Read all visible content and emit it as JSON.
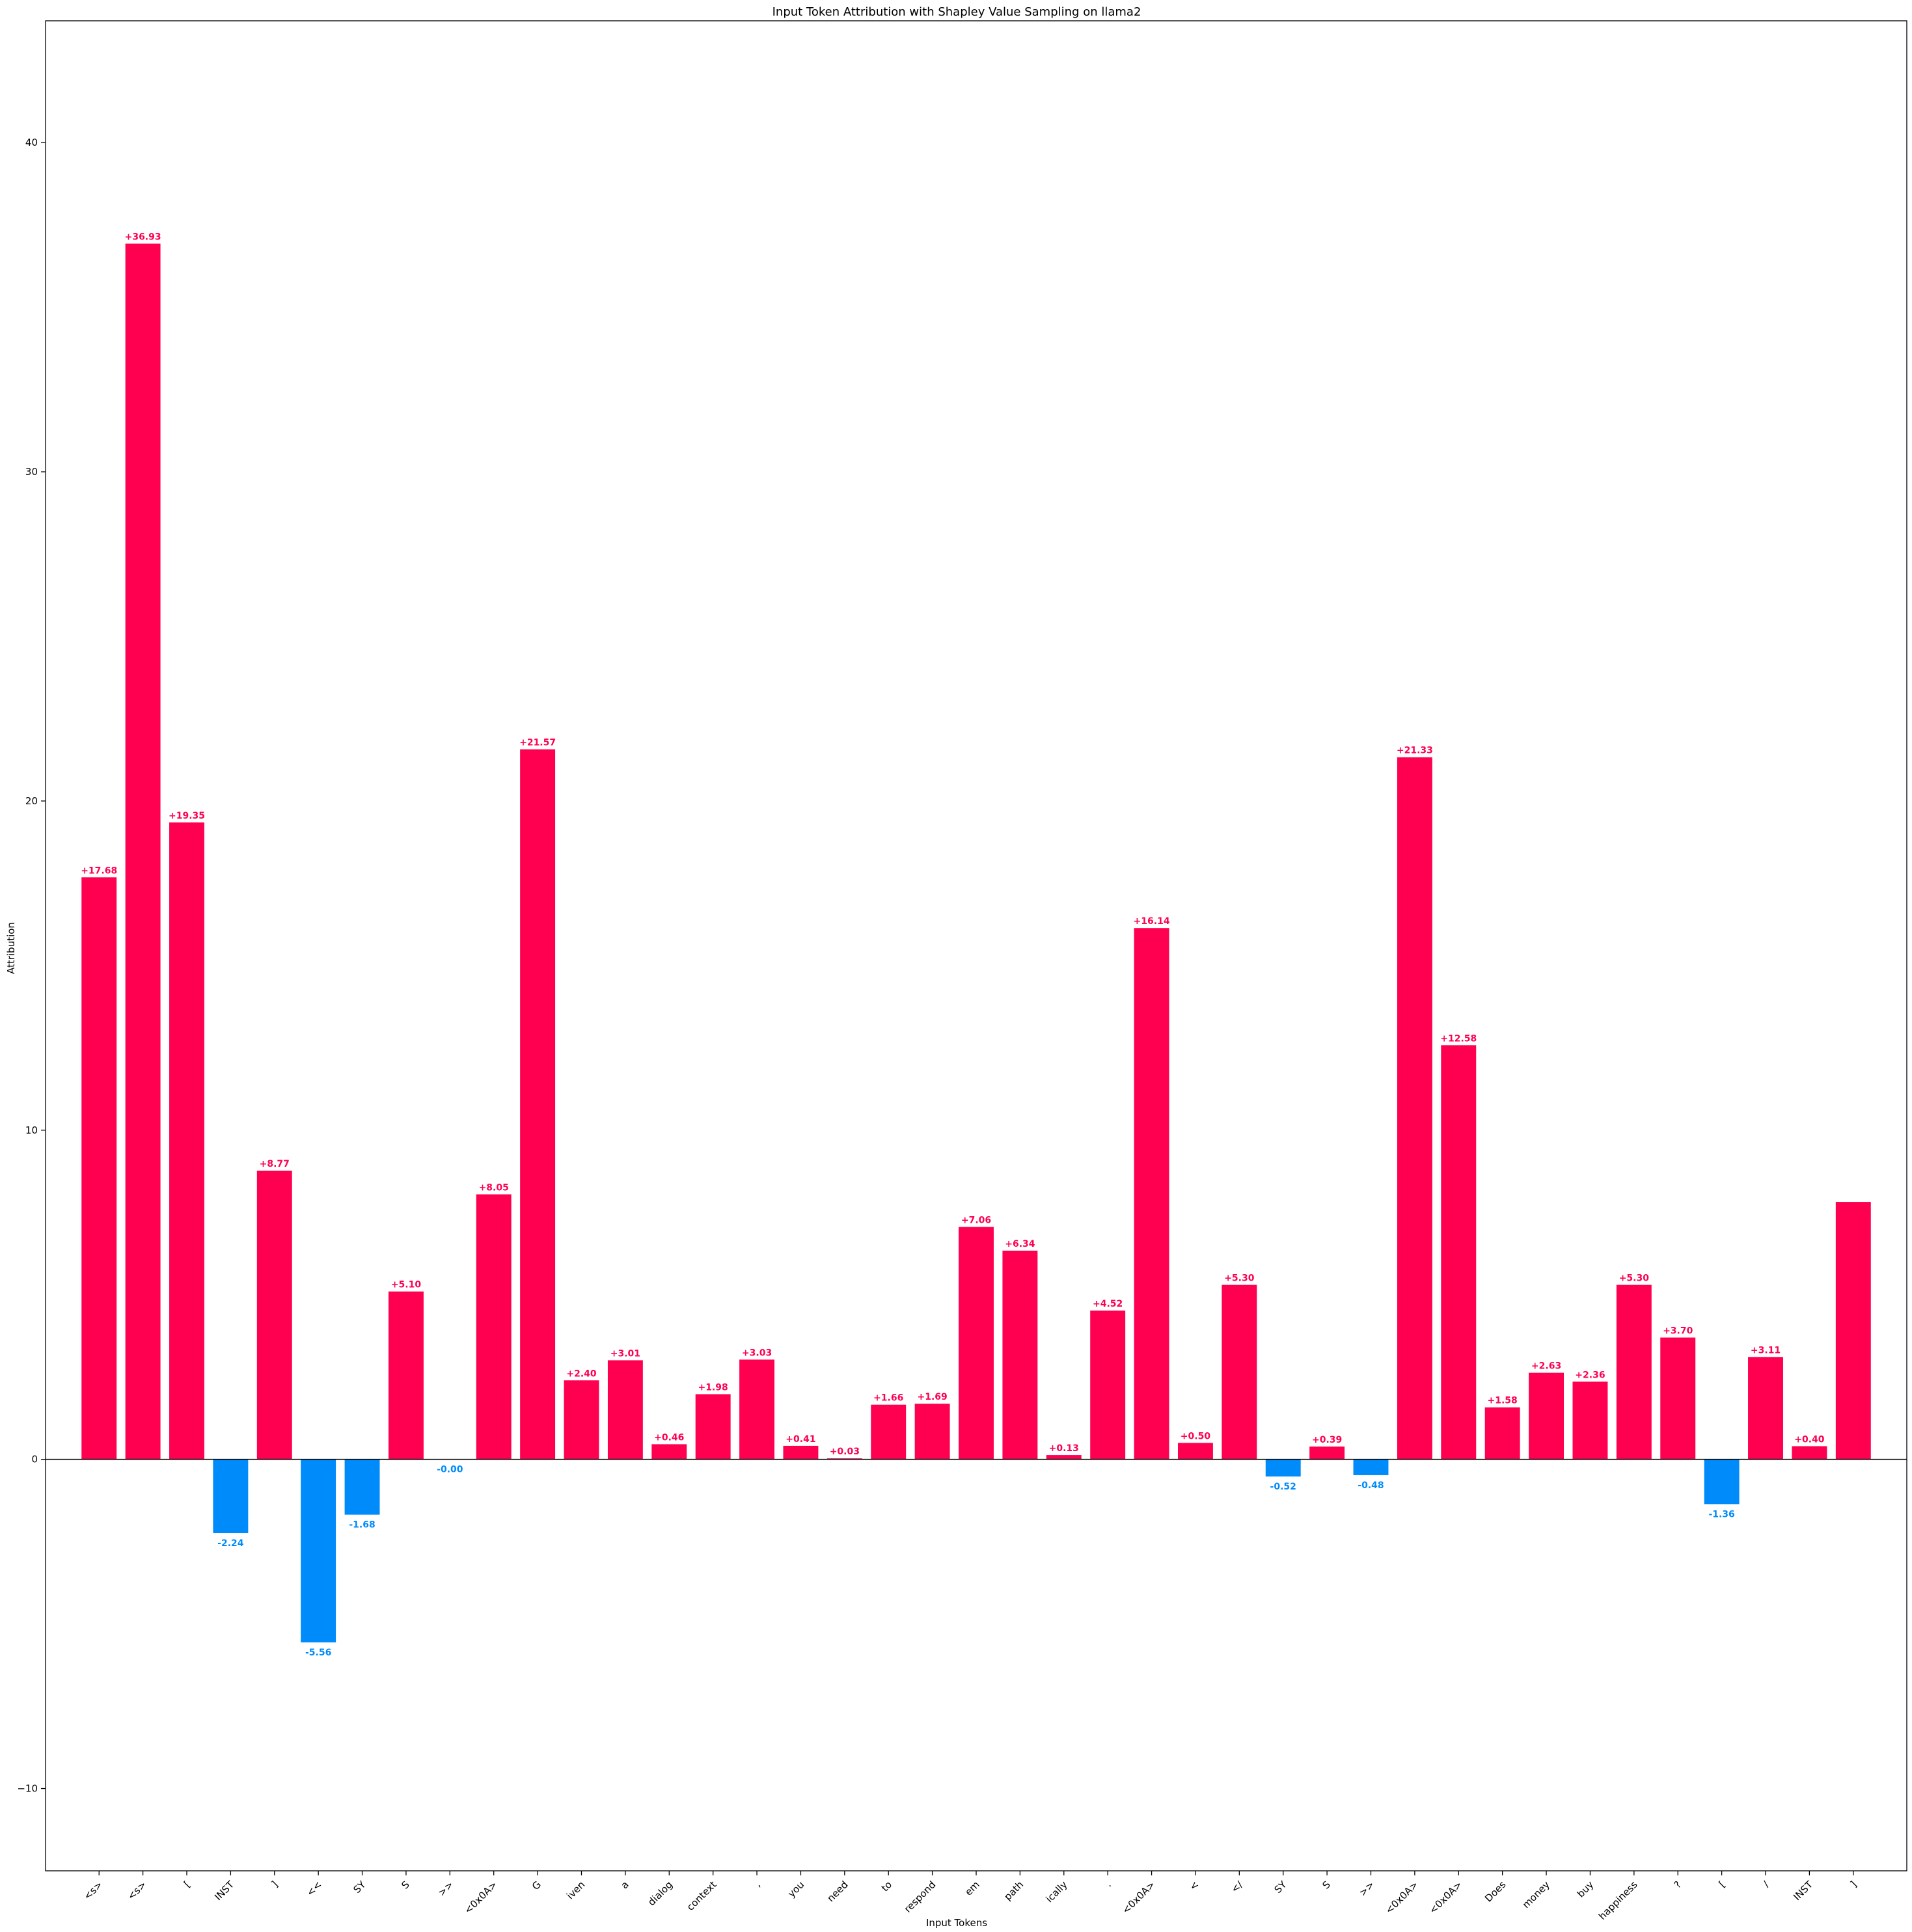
{
  "chart_data": {
    "type": "bar",
    "title": "Input Token Attribution with Shapley Value Sampling on llama2",
    "xlabel": "Input Tokens",
    "ylabel": "Attribution",
    "ylim": [
      -12.5,
      43.7
    ],
    "yticks": [
      -10,
      0,
      10,
      20,
      30,
      40
    ],
    "ytick_labels": [
      "−10",
      "0",
      "10",
      "20",
      "30",
      "40"
    ],
    "grid": false,
    "categories": [
      "<s>",
      "<s>",
      "[",
      "INST",
      "]",
      "<<",
      "SY",
      "S",
      ">>",
      "<0x0A>",
      "G",
      "iven",
      "a",
      "dialog",
      "context",
      ",",
      "you",
      "need",
      "to",
      "respond",
      "em",
      "path",
      "ically",
      ".",
      "<0x0A>",
      "<",
      "</",
      "SY",
      "S",
      ">>",
      "<0x0A>",
      "<0x0A>",
      "Does",
      "money",
      "buy",
      "happiness",
      "?",
      "[",
      "/",
      "INST",
      "]"
    ],
    "values": [
      17.68,
      36.93,
      19.35,
      -2.24,
      8.77,
      -5.56,
      -1.68,
      5.1,
      -0.0,
      8.05,
      21.57,
      2.4,
      3.01,
      0.46,
      1.98,
      3.03,
      0.41,
      0.03,
      1.66,
      1.69,
      7.06,
      6.34,
      0.13,
      4.52,
      16.14,
      0.5,
      5.3,
      -0.52,
      0.39,
      -0.48,
      21.33,
      12.58,
      1.58,
      2.63,
      2.36,
      5.3,
      3.7,
      -1.36,
      3.11,
      0.4,
      7.82
    ],
    "data_labels": [
      "+17.68",
      "+36.93",
      "+19.35",
      "-2.24",
      "+8.77",
      "-5.56",
      "-1.68",
      "+5.10",
      "-0.00",
      "+8.05",
      "+21.57",
      "+2.40",
      "+3.01",
      "+0.46",
      "+1.98",
      "+3.03",
      "+0.41",
      "+0.03",
      "+1.66",
      "+1.69",
      "+7.06",
      "+6.34",
      "+0.13",
      "+4.52",
      "+16.14",
      "+0.50",
      "+5.30",
      "-0.52",
      "+0.39",
      "-0.48",
      "+21.33",
      "+12.58",
      "+1.58",
      "+2.63",
      "+2.36",
      "+5.30",
      "+3.70",
      "-1.36",
      "+3.11",
      "+0.40",
      ""
    ],
    "colors": {
      "positive": "#ff0051",
      "negative": "#008bfb",
      "zero_line": "#000000"
    }
  }
}
